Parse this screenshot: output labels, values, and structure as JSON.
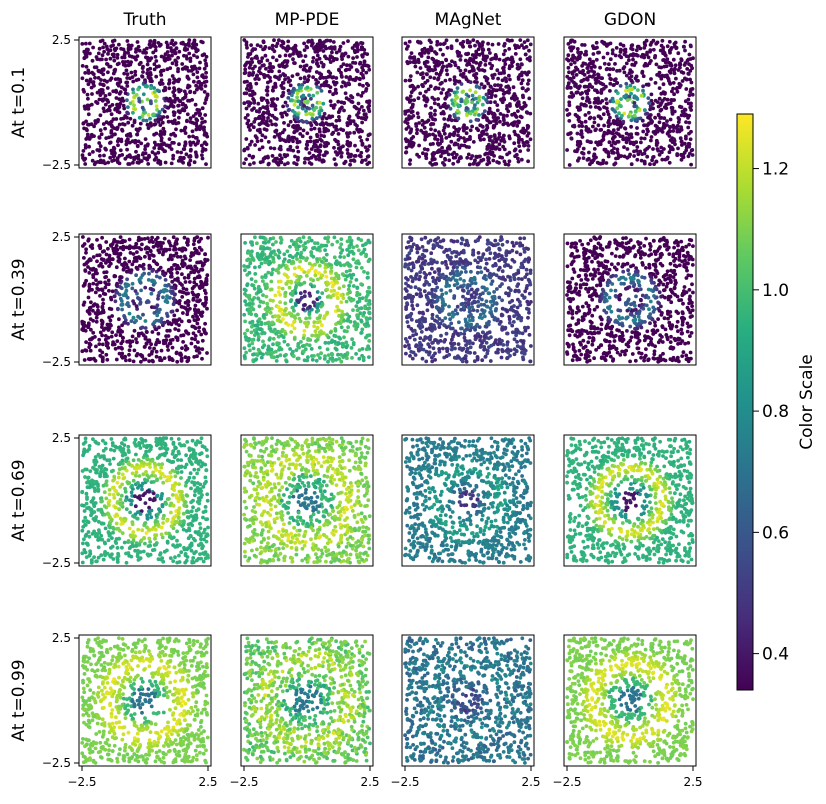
{
  "chart_data": {
    "type": "scatter",
    "columns": [
      "Truth",
      "MP-PDE",
      "MAgNet",
      "GDON"
    ],
    "rows": [
      "At t=0.1",
      "At t=0.39",
      "At t=0.69",
      "At t=0.99"
    ],
    "xlim": [
      -2.5,
      2.5
    ],
    "ylim": [
      -2.5,
      2.5
    ],
    "x_ticks": [
      "−2.5",
      "2.5"
    ],
    "y_ticks": [
      "2.5",
      "−2.5"
    ],
    "point_count_per_panel": 900,
    "colorbar": {
      "label": "Color Scale",
      "range": [
        0.34,
        1.29
      ],
      "ticks": [
        {
          "value": 0.4,
          "label": "0.4"
        },
        {
          "value": 0.6,
          "label": "0.6"
        },
        {
          "value": 0.8,
          "label": "0.8"
        },
        {
          "value": 1.0,
          "label": "1.0"
        },
        {
          "value": 1.2,
          "label": "1.2"
        }
      ],
      "colormap": "viridis"
    },
    "panels": [
      [
        {
          "background": 0.34,
          "ring_radius": 0.5,
          "ring_width": 0.35,
          "ring_value": 1.26,
          "center_value": 1.1,
          "noise": 0.0
        },
        {
          "background": 0.34,
          "ring_radius": 0.5,
          "ring_width": 0.35,
          "ring_value": 1.24,
          "center_value": 1.1,
          "noise": 0.02
        },
        {
          "background": 0.34,
          "ring_radius": 0.5,
          "ring_width": 0.35,
          "ring_value": 1.2,
          "center_value": 1.05,
          "noise": 0.02
        },
        {
          "background": 0.34,
          "ring_radius": 0.5,
          "ring_width": 0.35,
          "ring_value": 1.25,
          "center_value": 1.1,
          "noise": 0.02
        }
      ],
      [
        {
          "background": 0.34,
          "ring_radius": 0.85,
          "ring_width": 0.45,
          "ring_value": 0.78,
          "center_value": 0.55,
          "noise": 0.0
        },
        {
          "background": 0.98,
          "ring_radius": 1.2,
          "ring_width": 0.6,
          "ring_value": 1.26,
          "center_value": 0.45,
          "noise": 0.05
        },
        {
          "background": 0.5,
          "ring_radius": 0.9,
          "ring_width": 0.55,
          "ring_value": 0.72,
          "center_value": 0.5,
          "noise": 0.05
        },
        {
          "background": 0.34,
          "ring_radius": 0.85,
          "ring_width": 0.45,
          "ring_value": 0.78,
          "center_value": 0.6,
          "noise": 0.0
        }
      ],
      [
        {
          "background": 0.95,
          "ring_radius": 1.3,
          "ring_width": 0.55,
          "ring_value": 1.26,
          "center_value": 0.4,
          "noise": 0.02
        },
        {
          "background": 1.1,
          "ring_radius": 1.65,
          "ring_width": 0.6,
          "ring_value": 1.22,
          "center_value": 0.7,
          "noise": 0.06
        },
        {
          "background": 0.74,
          "ring_radius": 1.3,
          "ring_width": 0.6,
          "ring_value": 0.88,
          "center_value": 0.5,
          "noise": 0.05
        },
        {
          "background": 0.95,
          "ring_radius": 1.3,
          "ring_width": 0.55,
          "ring_value": 1.26,
          "center_value": 0.4,
          "noise": 0.02
        }
      ],
      [
        {
          "background": 1.1,
          "ring_radius": 1.5,
          "ring_width": 0.6,
          "ring_value": 1.26,
          "center_value": 0.7,
          "noise": 0.02
        },
        {
          "background": 1.06,
          "ring_radius": 1.7,
          "ring_width": 0.7,
          "ring_value": 1.18,
          "center_value": 0.75,
          "noise": 0.08
        },
        {
          "background": 0.7,
          "ring_radius": 1.4,
          "ring_width": 0.6,
          "ring_value": 0.76,
          "center_value": 0.55,
          "noise": 0.08
        },
        {
          "background": 1.1,
          "ring_radius": 1.5,
          "ring_width": 0.6,
          "ring_value": 1.26,
          "center_value": 0.7,
          "noise": 0.02
        }
      ]
    ]
  }
}
